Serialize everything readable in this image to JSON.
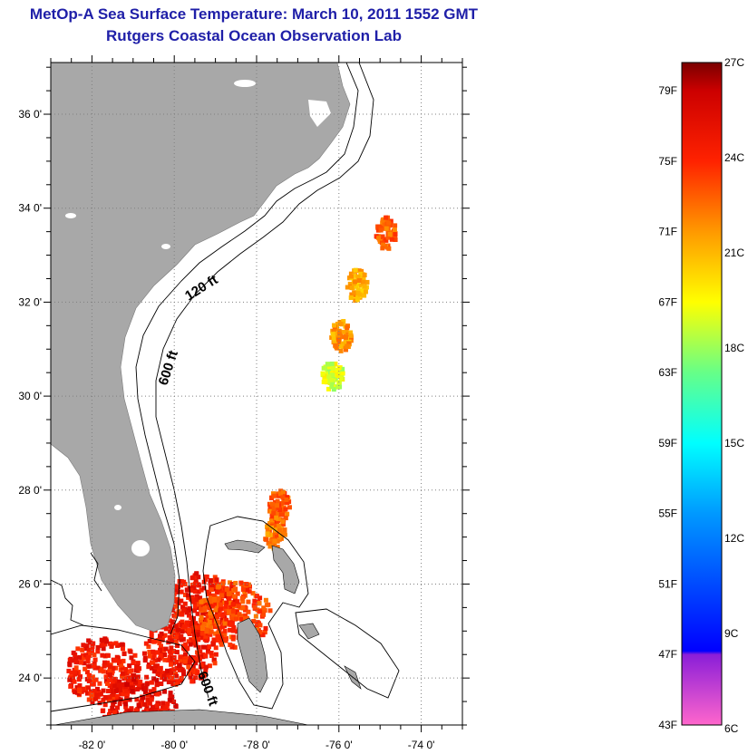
{
  "chart_data": {
    "type": "heatmap",
    "title": "MetOp-A Sea Surface Temperature:  March 10, 2011 1552 GMT",
    "subtitle": "Rutgers Coastal Ocean Observation Lab",
    "x_ticks": [
      {
        "value": -82,
        "label": "-82 0'"
      },
      {
        "value": -80,
        "label": "-80 0'"
      },
      {
        "value": -78,
        "label": "-78 0'"
      },
      {
        "value": -76,
        "label": "-76 0'"
      },
      {
        "value": -74,
        "label": "-74 0'"
      }
    ],
    "y_ticks": [
      {
        "value": 24,
        "label": "24 0'"
      },
      {
        "value": 26,
        "label": "26 0'"
      },
      {
        "value": 28,
        "label": "28 0'"
      },
      {
        "value": 30,
        "label": "30 0'"
      },
      {
        "value": 32,
        "label": "32 0'"
      },
      {
        "value": 34,
        "label": "34 0'"
      },
      {
        "value": 36,
        "label": "36 0'"
      }
    ],
    "xlim": [
      -83.0,
      -73.0
    ],
    "ylim": [
      23.0,
      37.1
    ],
    "grid": true,
    "contour_labels": [
      "120 ft",
      "600 ft",
      "600 ft"
    ],
    "colorbar": {
      "min_f": 43,
      "max_f": 80.6,
      "f_labels": [
        "79F",
        "75F",
        "71F",
        "67F",
        "63F",
        "59F",
        "55F",
        "51F",
        "47F",
        "43F"
      ],
      "f_values": [
        79,
        75,
        71,
        67,
        63,
        59,
        55,
        51,
        47,
        43
      ],
      "c_labels": [
        "27C",
        "24C",
        "21C",
        "18C",
        "15C",
        "12C",
        "9C",
        "6C"
      ],
      "c_values": [
        27,
        24,
        21,
        18,
        15,
        12,
        9,
        6
      ],
      "stops": [
        {
          "f": 43,
          "color": "#ff66cc"
        },
        {
          "f": 47,
          "color": "#8a1ed8"
        },
        {
          "f": 47.2,
          "color": "#0000ff"
        },
        {
          "f": 55,
          "color": "#0099ff"
        },
        {
          "f": 59,
          "color": "#00ffff"
        },
        {
          "f": 63,
          "color": "#66ff88"
        },
        {
          "f": 67,
          "color": "#ffff00"
        },
        {
          "f": 71,
          "color": "#ff9900"
        },
        {
          "f": 75,
          "color": "#ff2200"
        },
        {
          "f": 79,
          "color": "#cc0000"
        },
        {
          "f": 80.6,
          "color": "#7a0000"
        }
      ]
    },
    "sst_observations": [
      {
        "lon": -81.8,
        "lat": 24.2,
        "temp_f": 76
      },
      {
        "lon": -80.9,
        "lat": 23.4,
        "temp_f": 77
      },
      {
        "lon": -79.9,
        "lat": 24.6,
        "temp_f": 76
      },
      {
        "lon": -79.4,
        "lat": 25.6,
        "temp_f": 76
      },
      {
        "lon": -78.6,
        "lat": 25.4,
        "temp_f": 74
      },
      {
        "lon": -77.6,
        "lat": 27.1,
        "temp_f": 72
      },
      {
        "lon": -77.5,
        "lat": 27.7,
        "temp_f": 73
      },
      {
        "lon": -76.0,
        "lat": 31.3,
        "temp_f": 71
      },
      {
        "lon": -76.2,
        "lat": 30.5,
        "temp_f": 66
      },
      {
        "lon": -74.9,
        "lat": 33.5,
        "temp_f": 73
      },
      {
        "lon": -75.6,
        "lat": 32.4,
        "temp_f": 70
      }
    ]
  },
  "colors": {
    "title": "#1f1fa8",
    "land": "#a8a8a8",
    "ocean": "#ffffff",
    "grid": "#808080",
    "contour": "#000000"
  }
}
